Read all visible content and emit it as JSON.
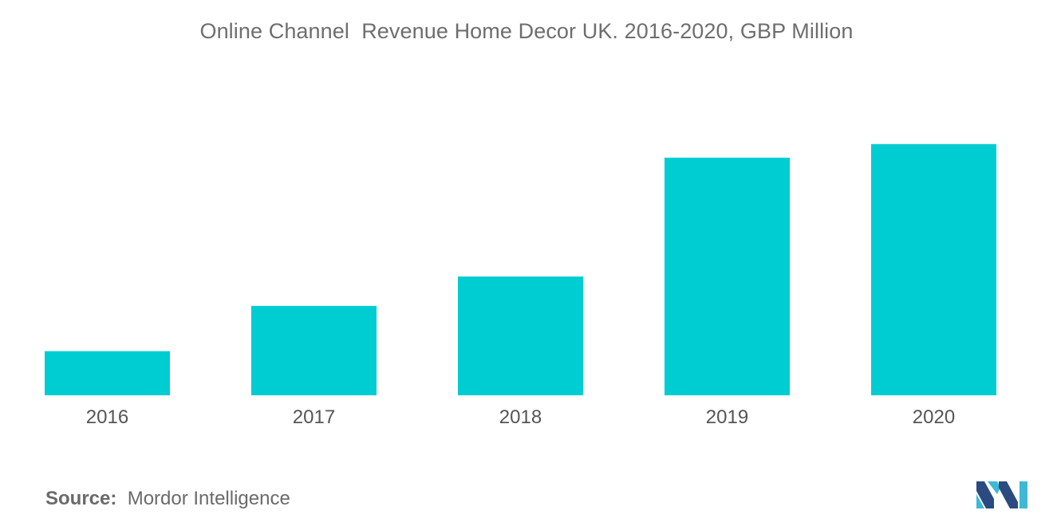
{
  "title": "Online Channel  Revenue Home Decor UK. 2016-2020, GBP Million",
  "source": {
    "label": "Source:",
    "text": "Mordor Intelligence"
  },
  "logo": {
    "icon": "mordor-intelligence-logo-icon",
    "colors": [
      "#2b4a80",
      "#3fb8d4"
    ]
  },
  "colors": {
    "bar": "#00cdd2",
    "text": "#6e6e6e"
  },
  "chart_data": {
    "type": "bar",
    "title": "Online Channel  Revenue Home Decor UK. 2016-2020, GBP Million",
    "categories": [
      "2016",
      "2017",
      "2018",
      "2019",
      "2020"
    ],
    "values": [
      19.5,
      39.5,
      52.5,
      105,
      111
    ],
    "xlabel": "",
    "ylabel": "",
    "ylim": [
      0,
      150
    ],
    "grid": false,
    "legend": "none"
  }
}
